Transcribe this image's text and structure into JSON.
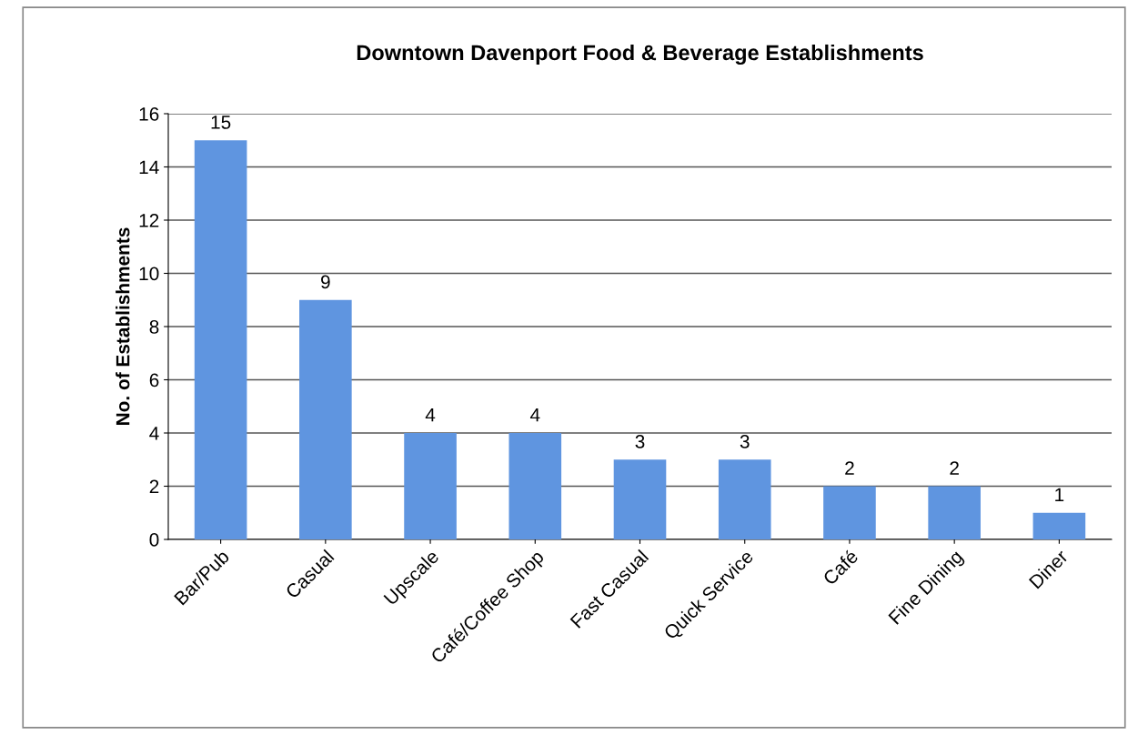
{
  "chart_data": {
    "type": "bar",
    "title": "Downtown Davenport Food & Beverage Establishments",
    "ylabel": "No. of Establishments",
    "categories": [
      "Bar/Pub",
      "Casual",
      "Upscale",
      "Café/Coffee Shop",
      "Fast Casual",
      "Quick Service",
      "Café",
      "Fine Dining",
      "Diner"
    ],
    "values": [
      15,
      9,
      4,
      4,
      3,
      3,
      2,
      2,
      1
    ],
    "color": "#5f95e0",
    "ylim": [
      0,
      16
    ],
    "yticks": [
      0,
      2,
      4,
      6,
      8,
      10,
      12,
      14,
      16
    ],
    "grid": "y",
    "data_labels": true
  }
}
